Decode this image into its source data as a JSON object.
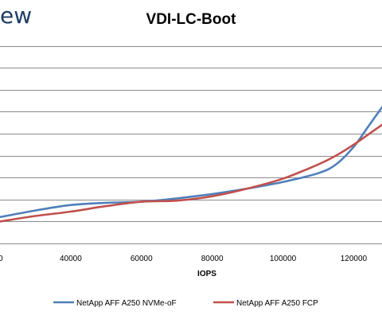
{
  "header": {
    "brand_fragment": "ew"
  },
  "chart_data": {
    "type": "line",
    "title": "VDI-LC-Boot",
    "xlabel": "IOPS",
    "ylabel": "",
    "xlim": [
      20000,
      128000
    ],
    "ylim": [
      0,
      10
    ],
    "x_tick_labels": [
      "40000",
      "60000",
      "80000",
      "100000",
      "120000"
    ],
    "x_tick_values": [
      40000,
      60000,
      80000,
      100000,
      120000
    ],
    "left_edge_tick_label": "0",
    "y_gridlines": [
      1,
      2,
      3,
      4,
      5,
      6,
      7,
      8,
      9
    ],
    "grid": true,
    "legend_position": "bottom",
    "series": [
      {
        "name": "NetApp AFF A250 NVMe-oF",
        "color": "#4f7fba",
        "points": [
          [
            20000,
            1.2
          ],
          [
            30000,
            1.5
          ],
          [
            40000,
            1.75
          ],
          [
            50000,
            1.85
          ],
          [
            60000,
            1.9
          ],
          [
            70000,
            2.05
          ],
          [
            80000,
            2.25
          ],
          [
            90000,
            2.5
          ],
          [
            100000,
            2.8
          ],
          [
            110000,
            3.2
          ],
          [
            115000,
            3.6
          ],
          [
            120000,
            4.4
          ],
          [
            124000,
            5.3
          ],
          [
            128000,
            6.2
          ]
        ]
      },
      {
        "name": "NetApp AFF A250 FCP",
        "color": "#c0504d",
        "points": [
          [
            20000,
            1.0
          ],
          [
            30000,
            1.25
          ],
          [
            40000,
            1.45
          ],
          [
            50000,
            1.7
          ],
          [
            60000,
            1.9
          ],
          [
            70000,
            1.95
          ],
          [
            80000,
            2.15
          ],
          [
            90000,
            2.5
          ],
          [
            100000,
            2.95
          ],
          [
            110000,
            3.6
          ],
          [
            115000,
            4.0
          ],
          [
            120000,
            4.5
          ],
          [
            124000,
            4.95
          ],
          [
            128000,
            5.4
          ]
        ]
      }
    ]
  }
}
